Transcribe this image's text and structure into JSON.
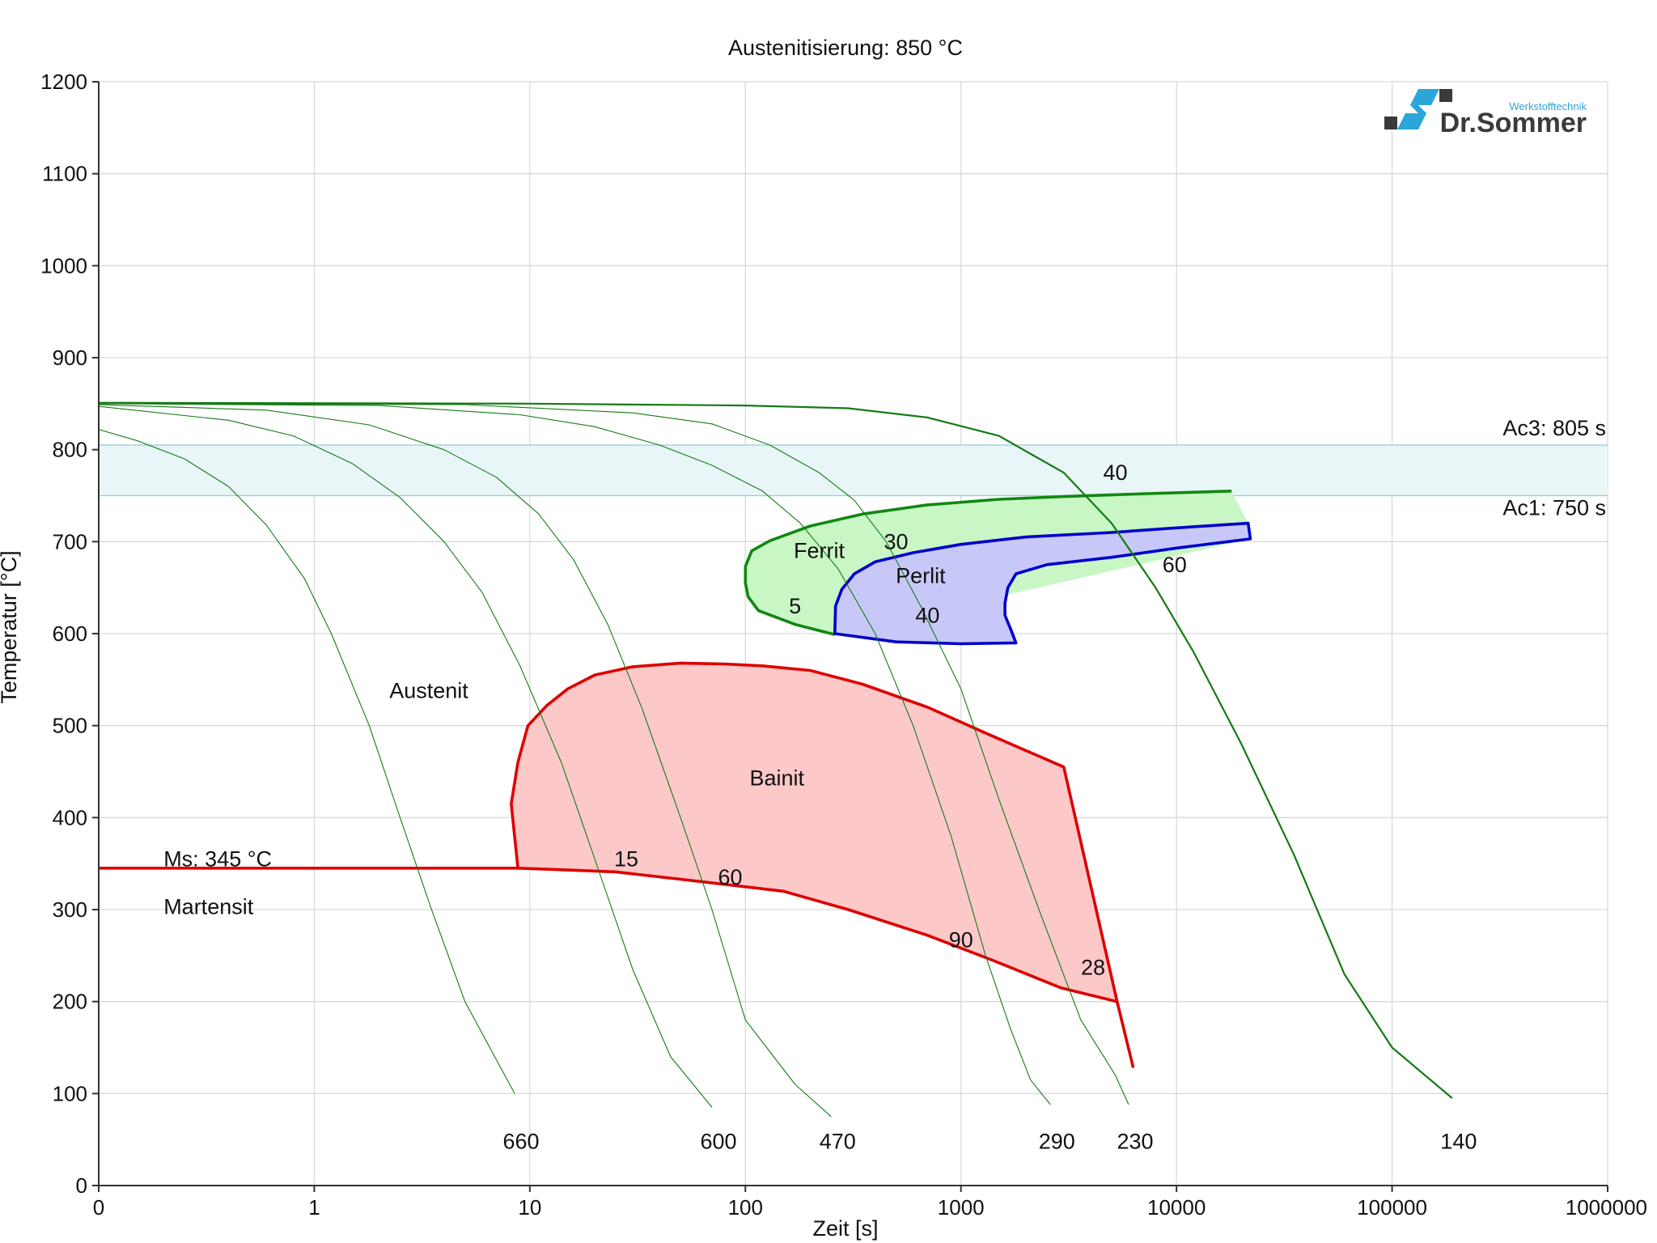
{
  "chart_data": {
    "type": "line",
    "title": "Austenitisierung: 850 °C",
    "xlabel": "Zeit [s]",
    "ylabel": "Temperatur [°C]",
    "xscale": "log",
    "xlim": [
      0.1,
      1000000
    ],
    "ylim": [
      0,
      1200
    ],
    "grid": true,
    "x_tick_values": [
      0.1,
      1,
      10,
      100,
      1000,
      10000,
      100000,
      1000000
    ],
    "x_tick_labels": [
      "0",
      "1",
      "10",
      "100",
      "1000",
      "10000",
      "100000",
      "1000000"
    ],
    "y_ticks": [
      0,
      100,
      200,
      300,
      400,
      500,
      600,
      700,
      800,
      900,
      1000,
      1100,
      1200
    ],
    "bands": [
      {
        "name": "Ac3-Ac1",
        "y_from": 750,
        "y_to": 805,
        "color": "#e9f6f8",
        "line_color": "#8fcfd6"
      }
    ],
    "band_labels": {
      "ac3": "Ac3: 805 s",
      "ac1": "Ac1: 750 s"
    },
    "ms_line": {
      "label": "Ms: 345 °C",
      "value": 345
    },
    "phase_labels": {
      "austenit": "Austenit",
      "ferrit": "Ferrit",
      "perlit": "Perlit",
      "bainit": "Bainit",
      "martensit": "Martensit"
    },
    "regions": [
      {
        "name": "Ferrit",
        "fill": "#c8f7c5",
        "stroke": "#118811",
        "boundary": [
          [
            18000,
            755
          ],
          [
            7000,
            752
          ],
          [
            3000,
            749
          ],
          [
            1500,
            746
          ],
          [
            700,
            740
          ],
          [
            350,
            730
          ],
          [
            200,
            717
          ],
          [
            130,
            701
          ],
          [
            107,
            690
          ],
          [
            100,
            673
          ],
          [
            100,
            655
          ],
          [
            103,
            640
          ],
          [
            115,
            625
          ],
          [
            170,
            610
          ],
          [
            260,
            599
          ]
        ],
        "fill_extra": [
          [
            22000,
            703
          ],
          [
            21500,
            720
          ],
          [
            18000,
            755
          ]
        ]
      },
      {
        "name": "Perlit",
        "fill": "#c8c8f8",
        "stroke": "#0000cc",
        "boundary": [
          [
            21500,
            720
          ],
          [
            10000,
            715
          ],
          [
            5000,
            710
          ],
          [
            2000,
            705
          ],
          [
            1000,
            697
          ],
          [
            600,
            688
          ],
          [
            400,
            678
          ],
          [
            320,
            665
          ],
          [
            280,
            648
          ],
          [
            262,
            630
          ],
          [
            260,
            600
          ],
          [
            500,
            591
          ],
          [
            1000,
            589
          ],
          [
            1800,
            590
          ],
          [
            1700,
            605
          ],
          [
            1600,
            620
          ],
          [
            1600,
            633
          ],
          [
            1650,
            650
          ],
          [
            1800,
            665
          ],
          [
            2500,
            675
          ],
          [
            5000,
            683
          ],
          [
            10000,
            693
          ],
          [
            22000,
            703
          ]
        ]
      },
      {
        "name": "Bainit",
        "fill": "#fcc8c8",
        "stroke": "#dd0000",
        "boundary": [
          [
            8.8,
            345
          ],
          [
            8.2,
            415
          ],
          [
            8.8,
            460
          ],
          [
            9.8,
            500
          ],
          [
            12,
            522
          ],
          [
            15,
            540
          ],
          [
            20,
            555
          ],
          [
            30,
            564
          ],
          [
            50,
            568
          ],
          [
            80,
            567
          ],
          [
            120,
            565
          ],
          [
            200,
            560
          ],
          [
            350,
            545
          ],
          [
            700,
            520
          ],
          [
            1300,
            492
          ],
          [
            3000,
            455
          ],
          [
            5300,
            200
          ],
          [
            2900,
            215
          ],
          [
            1400,
            245
          ],
          [
            700,
            272
          ],
          [
            300,
            300
          ],
          [
            150,
            320
          ],
          [
            50,
            333
          ],
          [
            25,
            341
          ],
          [
            15,
            343
          ],
          [
            8.8,
            345
          ]
        ],
        "tail": [
          [
            5300,
            200
          ],
          [
            6300,
            128
          ]
        ]
      }
    ],
    "region_labels": [
      {
        "region": "Ferrit",
        "x": 220,
        "y": 690
      },
      {
        "region": "Perlit",
        "x": 650,
        "y": 663
      },
      {
        "region": "Bainit",
        "x": 140,
        "y": 443
      },
      {
        "region": "Austenit",
        "x": 3.4,
        "y": 538
      },
      {
        "region": "Martensit",
        "x": 0.2,
        "y": 303
      }
    ],
    "ms_label_position": {
      "x": 0.2,
      "y": 355
    },
    "cooling_curves": [
      {
        "label": "660",
        "stroke_width": 1.1,
        "points": [
          [
            0.1,
            822
          ],
          [
            0.15,
            810
          ],
          [
            0.25,
            790
          ],
          [
            0.4,
            760
          ],
          [
            0.6,
            718
          ],
          [
            0.9,
            660
          ],
          [
            1.2,
            600
          ],
          [
            1.8,
            500
          ],
          [
            2.5,
            400
          ],
          [
            3.5,
            300
          ],
          [
            5,
            200
          ],
          [
            8.5,
            100
          ]
        ]
      },
      {
        "label": "600",
        "stroke_width": 1.1,
        "points": [
          [
            0.1,
            847
          ],
          [
            0.4,
            832
          ],
          [
            0.8,
            815
          ],
          [
            1.5,
            785
          ],
          [
            2.5,
            748
          ],
          [
            4,
            700
          ],
          [
            6,
            645
          ],
          [
            9,
            565
          ],
          [
            14,
            460
          ],
          [
            20,
            355
          ],
          [
            30,
            235
          ],
          [
            45,
            140
          ],
          [
            70,
            85
          ]
        ]
      },
      {
        "label": "470",
        "stroke_width": 1.1,
        "points": [
          [
            0.1,
            849
          ],
          [
            0.6,
            843
          ],
          [
            1.8,
            827
          ],
          [
            4,
            800
          ],
          [
            7,
            770
          ],
          [
            11,
            730
          ],
          [
            16,
            680
          ],
          [
            23,
            610
          ],
          [
            33,
            520
          ],
          [
            50,
            400
          ],
          [
            70,
            300
          ],
          [
            100,
            180
          ],
          [
            170,
            110
          ],
          [
            250,
            75
          ]
        ]
      },
      {
        "label": "290",
        "stroke_width": 1.1,
        "points": [
          [
            0.1,
            850
          ],
          [
            2,
            848
          ],
          [
            9,
            838
          ],
          [
            20,
            825
          ],
          [
            40,
            805
          ],
          [
            70,
            783
          ],
          [
            120,
            755
          ],
          [
            180,
            720
          ],
          [
            270,
            670
          ],
          [
            400,
            600
          ],
          [
            600,
            500
          ],
          [
            900,
            380
          ],
          [
            1300,
            250
          ],
          [
            1700,
            170
          ],
          [
            2100,
            115
          ],
          [
            2600,
            88
          ]
        ]
      },
      {
        "label": "230",
        "stroke_width": 1.1,
        "points": [
          [
            0.1,
            850
          ],
          [
            5,
            849
          ],
          [
            30,
            840
          ],
          [
            70,
            828
          ],
          [
            130,
            805
          ],
          [
            220,
            775
          ],
          [
            320,
            745
          ],
          [
            450,
            700
          ],
          [
            650,
            630
          ],
          [
            1000,
            540
          ],
          [
            1500,
            420
          ],
          [
            2300,
            300
          ],
          [
            3600,
            180
          ],
          [
            5200,
            120
          ],
          [
            6000,
            88
          ]
        ]
      },
      {
        "label": "140",
        "stroke_width": 2.2,
        "points": [
          [
            0.1,
            851
          ],
          [
            10,
            850
          ],
          [
            100,
            848
          ],
          [
            300,
            845
          ],
          [
            700,
            835
          ],
          [
            1500,
            815
          ],
          [
            3000,
            775
          ],
          [
            5000,
            720
          ],
          [
            8000,
            650
          ],
          [
            12000,
            580
          ],
          [
            20000,
            480
          ],
          [
            35000,
            360
          ],
          [
            60000,
            230
          ],
          [
            100000,
            150
          ],
          [
            190000,
            95
          ]
        ]
      }
    ],
    "curve_end_label_y": 48,
    "curve_annotations": [
      {
        "text": "40",
        "x": 5200,
        "y": 775
      },
      {
        "text": "30",
        "x": 500,
        "y": 700
      },
      {
        "text": "60",
        "x": 9800,
        "y": 675
      },
      {
        "text": "5",
        "x": 170,
        "y": 630
      },
      {
        "text": "40",
        "x": 700,
        "y": 620
      },
      {
        "text": "15",
        "x": 28,
        "y": 355
      },
      {
        "text": "60",
        "x": 85,
        "y": 335
      },
      {
        "text": "90",
        "x": 1000,
        "y": 267
      },
      {
        "text": "28",
        "x": 4100,
        "y": 237
      }
    ],
    "logo": {
      "sub": "Werkstofftechnik",
      "main": "Dr.Sommer"
    }
  }
}
